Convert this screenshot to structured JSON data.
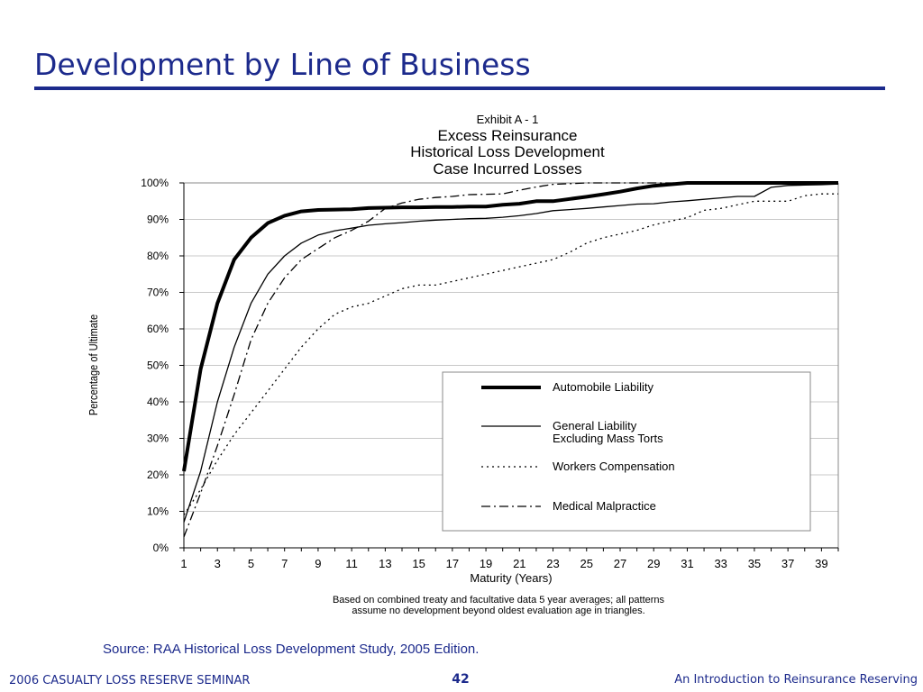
{
  "slide": {
    "title": "Development by Line of Business",
    "source": "Source: RAA Historical Loss Development Study, 2005 Edition.",
    "footer_left": "2006 CASUALTY LOSS RESERVE SEMINAR",
    "page_number": "42",
    "footer_right": "An Introduction to Reinsurance Reserving"
  },
  "chart_data": {
    "type": "line",
    "title_lines": [
      "Exhibit A - 1",
      "Excess Reinsurance",
      "Historical Loss Development",
      "Case Incurred Losses"
    ],
    "xlabel": "Maturity (Years)",
    "ylabel": "Percentage of Ultimate",
    "footnote_lines": [
      "Based on combined treaty and facultative data 5 year averages; all patterns",
      "assume no development beyond oldest evaluation age in triangles."
    ],
    "xlim": [
      1,
      40
    ],
    "ylim": [
      0,
      100
    ],
    "x_tick_labels": [
      "1",
      "3",
      "5",
      "7",
      "9",
      "11",
      "13",
      "15",
      "17",
      "19",
      "21",
      "23",
      "25",
      "27",
      "29",
      "31",
      "33",
      "35",
      "37",
      "39"
    ],
    "y_tick_labels": [
      "0%",
      "10%",
      "20%",
      "30%",
      "40%",
      "50%",
      "60%",
      "70%",
      "80%",
      "90%",
      "100%"
    ],
    "grid": "horizontal",
    "legend_position": "lower-right",
    "series": [
      {
        "name": "Automobile Liability",
        "style": "solid-thick",
        "x": [
          1,
          2,
          3,
          4,
          5,
          6,
          7,
          8,
          9,
          10,
          11,
          12,
          13,
          14,
          15,
          16,
          17,
          18,
          19,
          20,
          21,
          22,
          23,
          24,
          25,
          26,
          27,
          28,
          29,
          30,
          31,
          32,
          33,
          34,
          35,
          36,
          37,
          38,
          39,
          40
        ],
        "values": [
          21,
          49,
          67,
          79,
          85,
          89,
          91,
          92.2,
          92.6,
          92.7,
          92.8,
          93.1,
          93.2,
          93.3,
          93.3,
          93.4,
          93.4,
          93.5,
          93.5,
          94,
          94.3,
          95,
          95,
          95.6,
          96.2,
          96.9,
          97.6,
          98.5,
          99.2,
          99.6,
          100,
          100,
          100,
          100,
          100,
          100,
          100,
          100,
          100,
          100
        ]
      },
      {
        "name": "General Liability Excluding Mass Torts",
        "style": "solid-thin",
        "x": [
          1,
          2,
          3,
          4,
          5,
          6,
          7,
          8,
          9,
          10,
          11,
          12,
          13,
          14,
          15,
          16,
          17,
          18,
          19,
          20,
          21,
          22,
          23,
          24,
          25,
          26,
          27,
          28,
          29,
          30,
          31,
          32,
          33,
          34,
          35,
          36,
          37,
          38,
          39,
          40
        ],
        "values": [
          7,
          21,
          40,
          55,
          67,
          75,
          80,
          83.5,
          85.7,
          86.9,
          87.6,
          88.4,
          88.8,
          89.1,
          89.5,
          89.8,
          90,
          90.2,
          90.3,
          90.6,
          91,
          91.6,
          92.4,
          92.7,
          93,
          93.4,
          93.8,
          94.2,
          94.3,
          94.8,
          95.1,
          95.5,
          95.9,
          96.3,
          96.3,
          98.8,
          99.3,
          99.4,
          99.5,
          99.7
        ]
      },
      {
        "name": "Workers Compensation",
        "style": "dotted",
        "x": [
          1,
          2,
          3,
          4,
          5,
          6,
          7,
          8,
          9,
          10,
          11,
          12,
          13,
          14,
          15,
          16,
          17,
          18,
          19,
          20,
          21,
          22,
          23,
          24,
          25,
          26,
          27,
          28,
          29,
          30,
          31,
          32,
          33,
          34,
          35,
          36,
          37,
          38,
          39,
          40
        ],
        "values": [
          9,
          16,
          24,
          31,
          37,
          43,
          49,
          55,
          60,
          64,
          66,
          67,
          69,
          71,
          72,
          72,
          73,
          74,
          75,
          76,
          77,
          78,
          79,
          81,
          83.5,
          85,
          86,
          87,
          88.5,
          89.5,
          90.5,
          92.5,
          93,
          94,
          95,
          95,
          95,
          96.5,
          97,
          97
        ]
      },
      {
        "name": "Medical Malpractice",
        "style": "dash-dot",
        "x": [
          1,
          2,
          3,
          4,
          5,
          6,
          7,
          8,
          9,
          10,
          11,
          12,
          13,
          14,
          15,
          16,
          17,
          18,
          19,
          20,
          21,
          22,
          23,
          24,
          25,
          26,
          27,
          28,
          29,
          30,
          31,
          32,
          33,
          34,
          35,
          36,
          37,
          38,
          39,
          40
        ],
        "values": [
          3,
          15,
          28,
          42,
          57,
          67,
          74,
          79,
          82,
          85,
          87,
          89.5,
          93,
          94.5,
          95.5,
          96,
          96.3,
          96.8,
          96.9,
          97,
          98,
          98.9,
          99.6,
          99.8,
          100,
          100,
          100,
          100,
          100,
          100,
          100,
          100,
          100,
          100,
          100,
          100,
          100,
          100,
          100,
          100
        ]
      }
    ],
    "legend_lines": [
      [
        "Automobile Liability"
      ],
      [
        "General Liability",
        "Excluding Mass Torts"
      ],
      [
        "Workers Compensation"
      ],
      [
        "Medical Malpractice"
      ]
    ]
  }
}
